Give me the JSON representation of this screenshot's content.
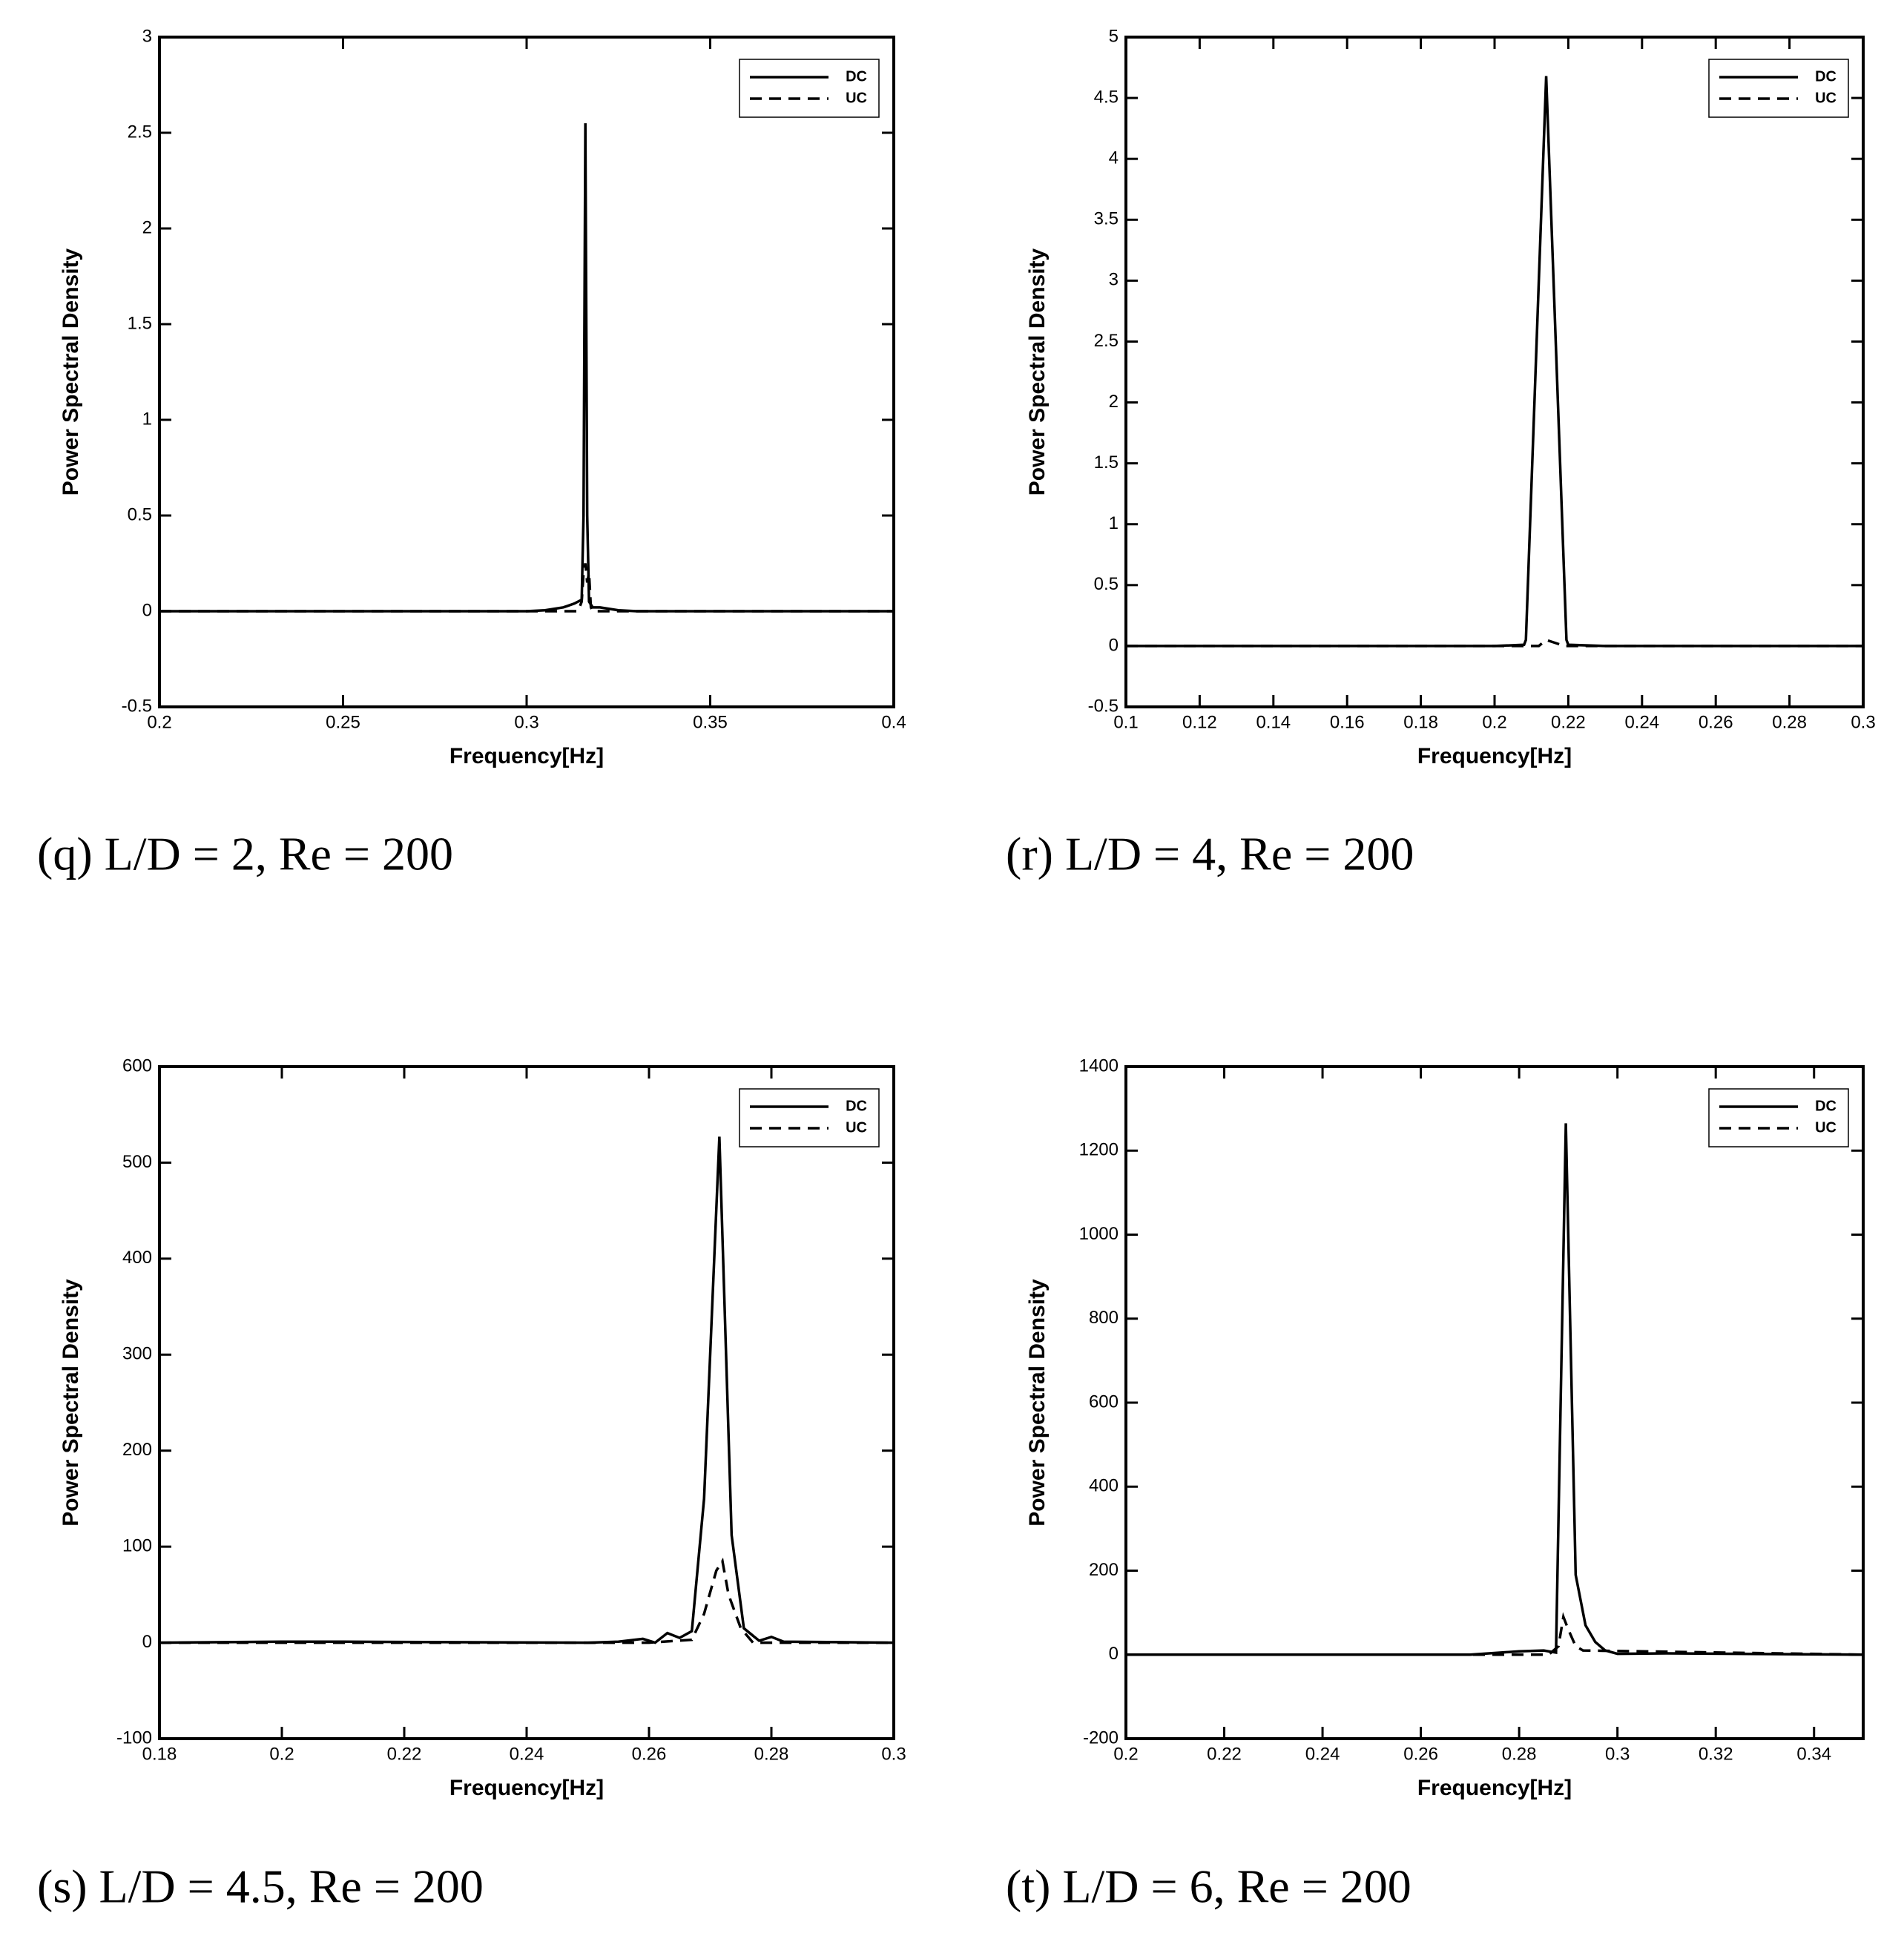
{
  "chart_data": [
    {
      "type": "line",
      "caption": "(q) L/D = 2, Re = 200",
      "xlabel": "Frequency[Hz]",
      "ylabel": "Power Spectral Density",
      "xlim": [
        0.2,
        0.4
      ],
      "xticks": [
        0.2,
        0.25,
        0.3,
        0.35,
        0.4
      ],
      "ylim": [
        -0.5,
        3
      ],
      "yticks": [
        -0.5,
        0,
        0.5,
        1,
        1.5,
        2,
        2.5,
        3
      ],
      "grid": false,
      "legend": "upper right",
      "series": [
        {
          "name": "DC",
          "color": "#000000",
          "line_style": "solid",
          "x": [
            0.2,
            0.3,
            0.305,
            0.31,
            0.313,
            0.315,
            0.3155,
            0.316,
            0.3165,
            0.317,
            0.318,
            0.32,
            0.325,
            0.33,
            0.4
          ],
          "values": [
            0,
            0,
            0.005,
            0.02,
            0.04,
            0.06,
            0.5,
            2.55,
            0.5,
            0.05,
            0.02,
            0.02,
            0.005,
            0,
            0
          ]
        },
        {
          "name": "UC",
          "color": "#000000",
          "line_style": "dashed",
          "x": [
            0.2,
            0.314,
            0.315,
            0.3155,
            0.316,
            0.3165,
            0.317,
            0.3175,
            0.318,
            0.4
          ],
          "values": [
            0,
            0,
            0.05,
            0.2,
            0.25,
            0.15,
            0.2,
            0.02,
            0,
            0
          ]
        }
      ]
    },
    {
      "type": "line",
      "caption": "(r) L/D = 4, Re = 200",
      "xlabel": "Frequency[Hz]",
      "ylabel": "Power Spectral Density",
      "xlim": [
        0.1,
        0.3
      ],
      "xticks": [
        0.1,
        0.12,
        0.14,
        0.16,
        0.18,
        0.2,
        0.22,
        0.24,
        0.26,
        0.28,
        0.3
      ],
      "ylim": [
        -0.5,
        5
      ],
      "yticks": [
        -0.5,
        0,
        0.5,
        1,
        1.5,
        2,
        2.5,
        3,
        3.5,
        4,
        4.5,
        5
      ],
      "grid": false,
      "legend": "upper right",
      "series": [
        {
          "name": "DC",
          "color": "#000000",
          "line_style": "solid",
          "x": [
            0.1,
            0.2,
            0.208,
            0.2085,
            0.214,
            0.2195,
            0.22,
            0.23,
            0.3
          ],
          "values": [
            0,
            0,
            0.01,
            0.05,
            4.68,
            0.05,
            0.01,
            0,
            0
          ]
        },
        {
          "name": "UC",
          "color": "#000000",
          "line_style": "dashed",
          "x": [
            0.1,
            0.212,
            0.214,
            0.219,
            0.3
          ],
          "values": [
            0,
            0,
            0.05,
            0,
            0
          ]
        }
      ]
    },
    {
      "type": "line",
      "caption": "(s) L/D = 4.5, Re = 200",
      "xlabel": "Frequency[Hz]",
      "ylabel": "Power Spectral Density",
      "xlim": [
        0.18,
        0.3
      ],
      "xticks": [
        0.18,
        0.2,
        0.22,
        0.24,
        0.26,
        0.28,
        0.3
      ],
      "ylim": [
        -100,
        600
      ],
      "yticks": [
        -100,
        0,
        100,
        200,
        300,
        400,
        500,
        600
      ],
      "grid": false,
      "legend": "upper right",
      "series": [
        {
          "name": "DC",
          "color": "#000000",
          "line_style": "solid",
          "x": [
            0.18,
            0.2,
            0.21,
            0.25,
            0.255,
            0.259,
            0.261,
            0.263,
            0.265,
            0.267,
            0.269,
            0.2715,
            0.2735,
            0.2755,
            0.278,
            0.28,
            0.282,
            0.3
          ],
          "values": [
            0,
            1,
            1,
            0,
            1,
            4,
            0,
            10,
            5,
            12,
            150,
            527,
            112,
            15,
            2,
            6,
            1,
            0
          ]
        },
        {
          "name": "UC",
          "color": "#000000",
          "line_style": "dashed",
          "x": [
            0.18,
            0.26,
            0.267,
            0.269,
            0.271,
            0.272,
            0.273,
            0.275,
            0.277,
            0.3
          ],
          "values": [
            0,
            0,
            3,
            30,
            75,
            85,
            50,
            15,
            0,
            0
          ]
        }
      ]
    },
    {
      "type": "line",
      "caption": "(t) L/D = 6, Re = 200",
      "xlabel": "Frequency[Hz]",
      "ylabel": "Power Spectral Density",
      "xlim": [
        0.2,
        0.35
      ],
      "xticks": [
        0.2,
        0.22,
        0.24,
        0.26,
        0.28,
        0.3,
        0.32,
        0.34
      ],
      "ylim": [
        -200,
        1400
      ],
      "yticks": [
        -200,
        0,
        200,
        400,
        600,
        800,
        1000,
        1200,
        1400
      ],
      "grid": false,
      "legend": "upper right",
      "series": [
        {
          "name": "DC",
          "color": "#000000",
          "line_style": "solid",
          "x": [
            0.2,
            0.27,
            0.28,
            0.285,
            0.2875,
            0.2895,
            0.2915,
            0.2935,
            0.2955,
            0.2975,
            0.3,
            0.31,
            0.35
          ],
          "values": [
            0,
            0,
            8,
            10,
            5,
            1265,
            190,
            70,
            30,
            10,
            2,
            3,
            0
          ]
        },
        {
          "name": "UC",
          "color": "#000000",
          "line_style": "dashed",
          "x": [
            0.2,
            0.286,
            0.288,
            0.289,
            0.29,
            0.2915,
            0.293,
            0.35
          ],
          "values": [
            0,
            0,
            20,
            90,
            60,
            20,
            10,
            0
          ]
        }
      ]
    }
  ]
}
